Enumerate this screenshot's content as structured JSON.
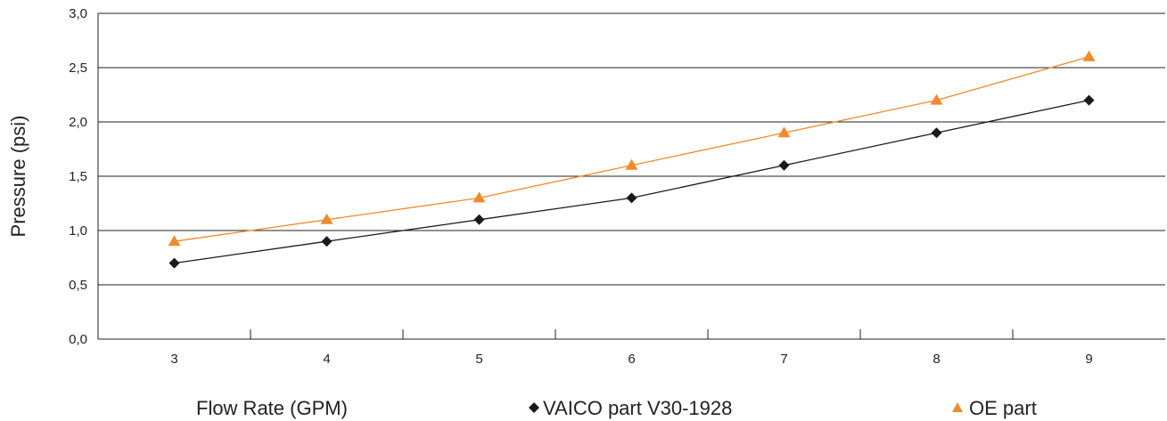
{
  "chart_data": {
    "type": "line",
    "x": [
      3,
      4,
      5,
      6,
      7,
      8,
      9
    ],
    "series": [
      {
        "name": "VAICO part V30-1928",
        "values": [
          0.7,
          0.9,
          1.1,
          1.3,
          1.6,
          1.9,
          2.2
        ],
        "color": "#1a1a1a",
        "marker": "diamond"
      },
      {
        "name": "OE part",
        "values": [
          0.9,
          1.1,
          1.3,
          1.6,
          1.9,
          2.2,
          2.6
        ],
        "color": "#f18a2b",
        "marker": "triangle"
      }
    ],
    "xlabel": "Flow Rate (GPM)",
    "ylabel": "Pressure (psi)",
    "ylim": [
      0,
      3
    ],
    "yticks": [
      "0,0",
      "0,5",
      "1,0",
      "1,5",
      "2,0",
      "2,5",
      "3,0"
    ],
    "xticks": [
      "3",
      "4",
      "5",
      "6",
      "7",
      "8",
      "9"
    ],
    "grid": true,
    "legend_position": "bottom"
  }
}
